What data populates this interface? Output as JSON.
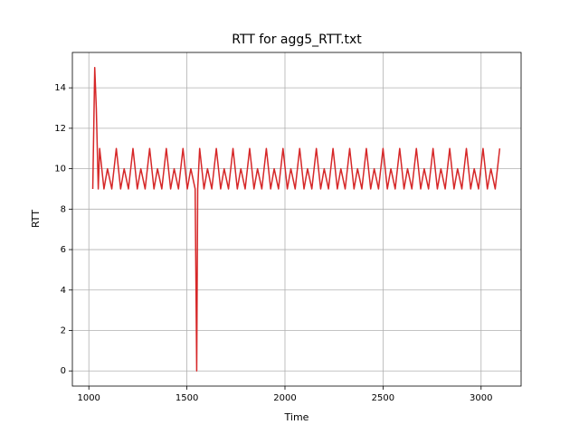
{
  "chart_data": {
    "type": "line",
    "title": "RTT for agg5_RTT.txt",
    "xlabel": "Time",
    "ylabel": "RTT",
    "x": [
      1020,
      1030,
      1038,
      1048,
      1055,
      1077,
      1095,
      1117,
      1140,
      1162,
      1180,
      1202,
      1225,
      1247,
      1265,
      1287,
      1310,
      1332,
      1350,
      1372,
      1395,
      1417,
      1435,
      1457,
      1480,
      1502,
      1520,
      1542,
      1550,
      1555,
      1565,
      1587,
      1605,
      1627,
      1650,
      1672,
      1690,
      1712,
      1735,
      1757,
      1775,
      1797,
      1820,
      1842,
      1860,
      1882,
      1905,
      1927,
      1945,
      1967,
      1990,
      2012,
      2030,
      2052,
      2075,
      2097,
      2115,
      2137,
      2160,
      2182,
      2200,
      2222,
      2245,
      2267,
      2285,
      2307,
      2330,
      2352,
      2370,
      2392,
      2415,
      2437,
      2455,
      2477,
      2500,
      2522,
      2540,
      2562,
      2585,
      2607,
      2625,
      2647,
      2670,
      2692,
      2710,
      2732,
      2755,
      2777,
      2795,
      2817,
      2840,
      2862,
      2880,
      2902,
      2925,
      2947,
      2965,
      2987,
      3010,
      3032,
      3050,
      3072,
      3095
    ],
    "series": [
      {
        "name": "RTT",
        "color": "#d62728",
        "values": [
          9,
          15,
          13,
          9,
          11,
          9,
          10,
          9,
          11,
          9,
          10,
          9,
          11,
          9,
          10,
          9,
          11,
          9,
          10,
          9,
          11,
          9,
          10,
          9,
          11,
          9,
          10,
          9,
          0,
          9,
          11,
          9,
          10,
          9,
          11,
          9,
          10,
          9,
          11,
          9,
          10,
          9,
          11,
          9,
          10,
          9,
          11,
          9,
          10,
          9,
          11,
          9,
          10,
          9,
          11,
          9,
          10,
          9,
          11,
          9,
          10,
          9,
          11,
          9,
          10,
          9,
          11,
          9,
          10,
          9,
          11,
          9,
          10,
          9,
          11,
          9,
          10,
          9,
          11,
          9,
          10,
          9,
          11,
          9,
          10,
          9,
          11,
          9,
          10,
          9,
          11,
          9,
          10,
          9,
          11,
          9,
          10,
          9,
          11,
          9,
          10,
          9,
          11
        ]
      }
    ],
    "xlim": [
      916,
      3204
    ],
    "ylim": [
      -0.75,
      15.75
    ],
    "xticks": [
      1000,
      1500,
      2000,
      2500,
      3000
    ],
    "yticks": [
      0,
      2,
      4,
      6,
      8,
      10,
      12,
      14
    ],
    "grid": true
  }
}
